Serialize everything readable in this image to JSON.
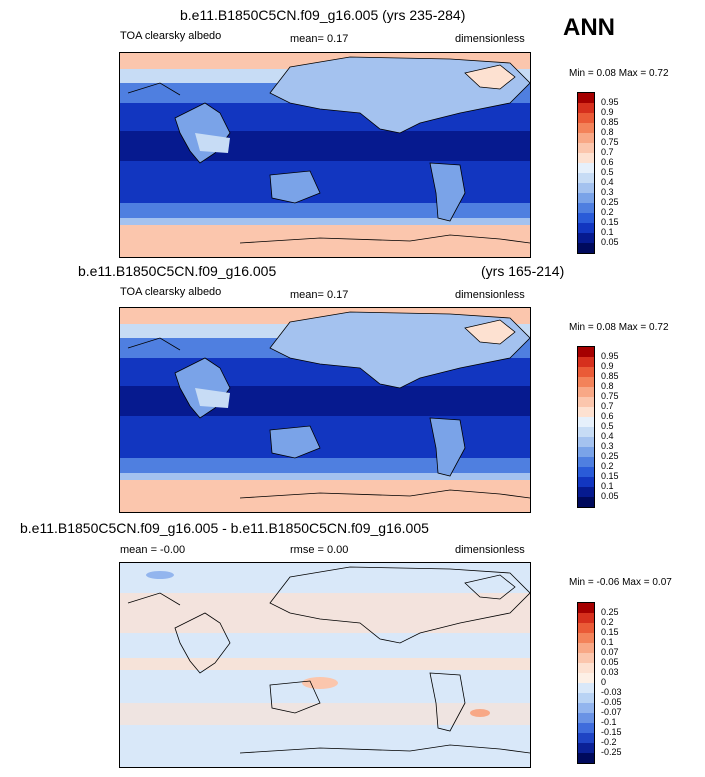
{
  "season": "ANN",
  "panels": [
    {
      "title": "b.e11.B1850C5CN.f09_g16.005 (yrs 235-284)",
      "left": "TOA clearsky albedo",
      "mid": "mean=   0.17",
      "right": "dimensionless",
      "minmax": "Min =   0.08 Max =   0.72",
      "colorbar": [
        "0.95",
        "0.9",
        "0.85",
        "0.8",
        "0.75",
        "0.7",
        "0.6",
        "0.5",
        "0.4",
        "0.3",
        "0.25",
        "0.2",
        "0.15",
        "0.1",
        "0.05"
      ],
      "colors": [
        "#a50000",
        "#d6301d",
        "#ea5b37",
        "#f3835a",
        "#f8a886",
        "#fbc6ad",
        "#fde1d1",
        "#e6f0fb",
        "#c7dcf5",
        "#a4c2ef",
        "#7aa3e8",
        "#4f7fe0",
        "#2a5bd8",
        "#1236c0",
        "#061a8f",
        "#000a5c"
      ]
    },
    {
      "title": "b.e11.B1850C5CN.f09_g16.005",
      "title_right": "(yrs 165-214)",
      "left": "TOA clearsky albedo",
      "mid": "mean=   0.17",
      "right": "dimensionless",
      "minmax": "Min =   0.08 Max =   0.72",
      "colorbar": [
        "0.95",
        "0.9",
        "0.85",
        "0.8",
        "0.75",
        "0.7",
        "0.6",
        "0.5",
        "0.4",
        "0.3",
        "0.25",
        "0.2",
        "0.15",
        "0.1",
        "0.05"
      ],
      "colors": [
        "#a50000",
        "#d6301d",
        "#ea5b37",
        "#f3835a",
        "#f8a886",
        "#fbc6ad",
        "#fde1d1",
        "#e6f0fb",
        "#c7dcf5",
        "#a4c2ef",
        "#7aa3e8",
        "#4f7fe0",
        "#2a5bd8",
        "#1236c0",
        "#061a8f",
        "#000a5c"
      ]
    },
    {
      "title": "b.e11.B1850C5CN.f09_g16.005 - b.e11.B1850C5CN.f09_g16.005",
      "left": "mean = -0.00",
      "mid": "rmse =   0.00",
      "right": "dimensionless",
      "minmax": "Min =  -0.06 Max =   0.07",
      "colorbar": [
        "0.25",
        "0.2",
        "0.15",
        "0.1",
        "0.07",
        "0.05",
        "0.03",
        "0",
        "-0.03",
        "-0.05",
        "-0.07",
        "-0.1",
        "-0.15",
        "-0.2",
        "-0.25"
      ],
      "colors": [
        "#a50000",
        "#d6301d",
        "#ea5b37",
        "#f3835a",
        "#f8a886",
        "#fbc6ad",
        "#fde1d1",
        "#fdf0e6",
        "#d9e8f9",
        "#b9d3f4",
        "#93b5ee",
        "#6a93e5",
        "#3f6cdc",
        "#1f44c4",
        "#0b2196",
        "#000a5c"
      ]
    }
  ]
}
